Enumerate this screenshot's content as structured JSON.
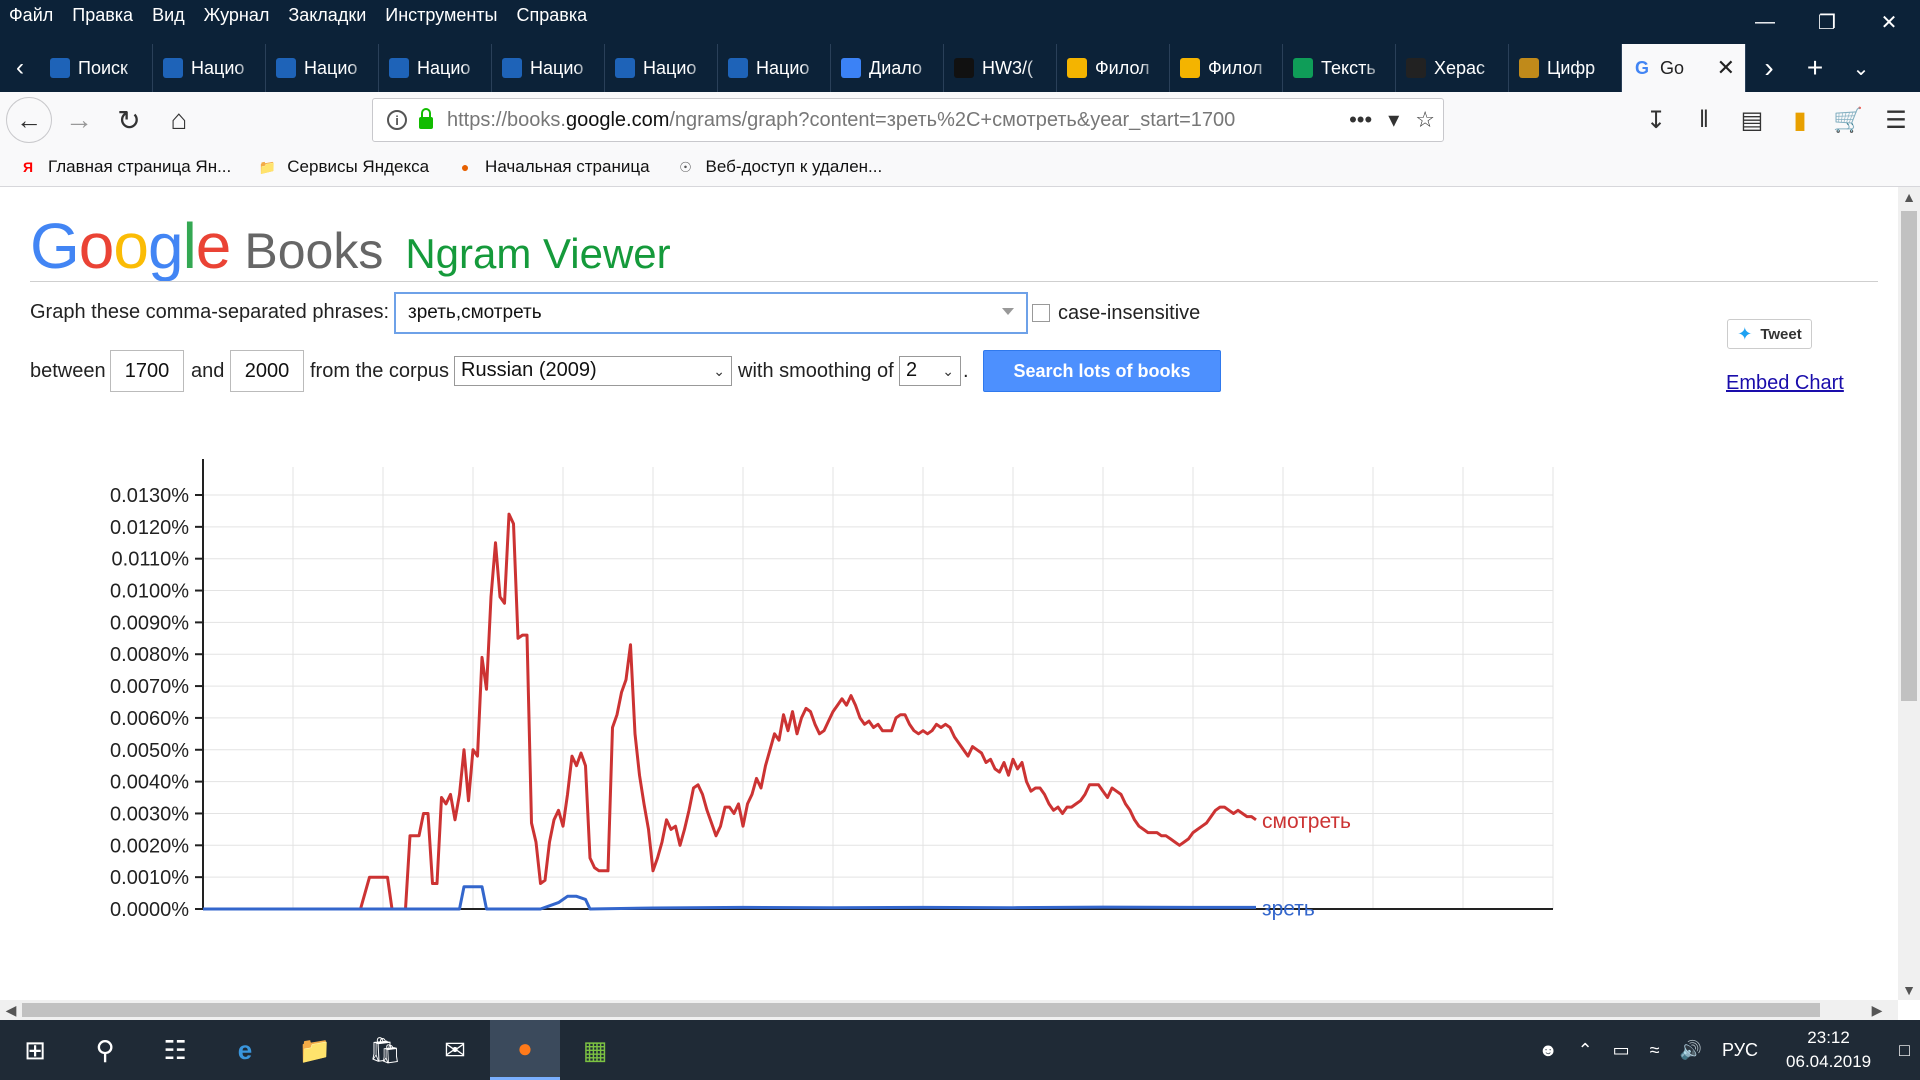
{
  "menu": [
    "Файл",
    "Правка",
    "Вид",
    "Журнал",
    "Закладки",
    "Инструменты",
    "Справка"
  ],
  "tabs": [
    {
      "label": "Поиск",
      "icon": "nkrya-icon",
      "color": "#1e63b8"
    },
    {
      "label": "Нацио",
      "icon": "nkrya-icon",
      "color": "#1e63b8"
    },
    {
      "label": "Нацио",
      "icon": "nkrya-icon",
      "color": "#1e63b8"
    },
    {
      "label": "Нацио",
      "icon": "nkrya-icon",
      "color": "#1e63b8"
    },
    {
      "label": "Нацио",
      "icon": "nkrya-icon",
      "color": "#1e63b8"
    },
    {
      "label": "Нацио",
      "icon": "nkrya-icon",
      "color": "#1e63b8"
    },
    {
      "label": "Нацио",
      "icon": "nkrya-icon",
      "color": "#1e63b8"
    },
    {
      "label": "Диало",
      "icon": "chat-icon",
      "color": "#3b82f6"
    },
    {
      "label": "HW3/(",
      "icon": "github-icon",
      "color": "#111111"
    },
    {
      "label": "Филол",
      "icon": "slides-icon",
      "color": "#f4b400"
    },
    {
      "label": "Филол",
      "icon": "slides-icon",
      "color": "#f4b400"
    },
    {
      "label": "Тексть",
      "icon": "sheets-icon",
      "color": "#0f9d58"
    },
    {
      "label": "Херас",
      "icon": "site-icon",
      "color": "#222222"
    },
    {
      "label": "Цифр",
      "icon": "site-icon",
      "color": "#c08a1a"
    }
  ],
  "active_tab": {
    "label": "Go",
    "icon": "google-icon"
  },
  "url": {
    "prefix": "https://books.",
    "domain": "google.com",
    "rest": "/ngrams/graph?content=зреть%2C+смотреть&year_start=1700"
  },
  "bookmarks": [
    {
      "label": "Главная страница Ян...",
      "icon": "yandex-icon"
    },
    {
      "label": "Сервисы Яндекса",
      "icon": "folder-icon"
    },
    {
      "label": "Начальная страница",
      "icon": "firefox-icon"
    },
    {
      "label": "Веб-доступ к удален...",
      "icon": "globe-icon"
    }
  ],
  "form": {
    "graph_label": "Graph these comma-separated phrases:",
    "phrases": "зреть,смотреть",
    "case_label": "case-insensitive",
    "between": "between",
    "year_start": "1700",
    "and": "and",
    "year_end": "2000",
    "corpus_label": "from the corpus",
    "corpus": "Russian (2009)",
    "smoothing_label": "with smoothing of",
    "smoothing": "2",
    "period": ".",
    "search_button": "Search lots of books",
    "tweet": "Tweet",
    "embed": "Embed Chart"
  },
  "logo": {
    "google": "Google",
    "books": "Books",
    "ngram": "Ngram Viewer"
  },
  "chart_data": {
    "type": "line",
    "title": "",
    "xlabel": "",
    "ylabel": "",
    "y_unit": "%",
    "xlim": [
      1700,
      2000
    ],
    "ylim": [
      0,
      0.013
    ],
    "y_ticks": [
      0,
      0.001,
      0.002,
      0.003,
      0.004,
      0.005,
      0.006,
      0.007,
      0.008,
      0.009,
      0.01,
      0.011,
      0.012,
      0.013
    ],
    "grid": true,
    "series": [
      {
        "name": "смотреть",
        "color": "#cc3333",
        "points": [
          [
            1700,
            0
          ],
          [
            1735,
            0
          ],
          [
            1737,
            0.001
          ],
          [
            1741,
            0.001
          ],
          [
            1742,
            0
          ],
          [
            1745,
            0
          ],
          [
            1746,
            0.0023
          ],
          [
            1748,
            0.0023
          ],
          [
            1749,
            0.003
          ],
          [
            1750,
            0.003
          ],
          [
            1751,
            0.0008
          ],
          [
            1752,
            0.0008
          ],
          [
            1753,
            0.0035
          ],
          [
            1754,
            0.0033
          ],
          [
            1755,
            0.0036
          ],
          [
            1756,
            0.0028
          ],
          [
            1757,
            0.0036
          ],
          [
            1758,
            0.005
          ],
          [
            1759,
            0.0034
          ],
          [
            1760,
            0.005
          ],
          [
            1761,
            0.0048
          ],
          [
            1762,
            0.0079
          ],
          [
            1763,
            0.0069
          ],
          [
            1764,
            0.0098
          ],
          [
            1765,
            0.0115
          ],
          [
            1766,
            0.0098
          ],
          [
            1767,
            0.0096
          ],
          [
            1768,
            0.0124
          ],
          [
            1769,
            0.0121
          ],
          [
            1770,
            0.0085
          ],
          [
            1771,
            0.0086
          ],
          [
            1772,
            0.0086
          ],
          [
            1773,
            0.0027
          ],
          [
            1774,
            0.0021
          ],
          [
            1775,
            0.0008
          ],
          [
            1776,
            0.0009
          ],
          [
            1777,
            0.0021
          ],
          [
            1778,
            0.0028
          ],
          [
            1779,
            0.0031
          ],
          [
            1780,
            0.0026
          ],
          [
            1781,
            0.0036
          ],
          [
            1782,
            0.0048
          ],
          [
            1783,
            0.0045
          ],
          [
            1784,
            0.0049
          ],
          [
            1785,
            0.0045
          ],
          [
            1786,
            0.0016
          ],
          [
            1787,
            0.0013
          ],
          [
            1788,
            0.0012
          ],
          [
            1789,
            0.0012
          ],
          [
            1790,
            0.0012
          ],
          [
            1791,
            0.0057
          ],
          [
            1792,
            0.0061
          ],
          [
            1793,
            0.0068
          ],
          [
            1794,
            0.0072
          ],
          [
            1795,
            0.0083
          ],
          [
            1796,
            0.0055
          ],
          [
            1797,
            0.0042
          ],
          [
            1798,
            0.0033
          ],
          [
            1799,
            0.0025
          ],
          [
            1800,
            0.0012
          ],
          [
            1801,
            0.0016
          ],
          [
            1802,
            0.0021
          ],
          [
            1803,
            0.0028
          ],
          [
            1804,
            0.0025
          ],
          [
            1805,
            0.0026
          ],
          [
            1806,
            0.002
          ],
          [
            1807,
            0.0025
          ],
          [
            1808,
            0.0031
          ],
          [
            1809,
            0.0038
          ],
          [
            1810,
            0.0039
          ],
          [
            1811,
            0.0036
          ],
          [
            1812,
            0.0031
          ],
          [
            1813,
            0.0027
          ],
          [
            1814,
            0.0023
          ],
          [
            1815,
            0.0026
          ],
          [
            1816,
            0.0032
          ],
          [
            1817,
            0.0032
          ],
          [
            1818,
            0.003
          ],
          [
            1819,
            0.0033
          ],
          [
            1820,
            0.0026
          ],
          [
            1821,
            0.0033
          ],
          [
            1822,
            0.0036
          ],
          [
            1823,
            0.0041
          ],
          [
            1824,
            0.0038
          ],
          [
            1825,
            0.0045
          ],
          [
            1826,
            0.005
          ],
          [
            1827,
            0.0055
          ],
          [
            1828,
            0.0053
          ],
          [
            1829,
            0.0061
          ],
          [
            1830,
            0.0056
          ],
          [
            1831,
            0.0062
          ],
          [
            1832,
            0.0055
          ],
          [
            1833,
            0.006
          ],
          [
            1834,
            0.0063
          ],
          [
            1835,
            0.0062
          ],
          [
            1836,
            0.0058
          ],
          [
            1837,
            0.0055
          ],
          [
            1838,
            0.0056
          ],
          [
            1839,
            0.0059
          ],
          [
            1840,
            0.0062
          ],
          [
            1841,
            0.0064
          ],
          [
            1842,
            0.0066
          ],
          [
            1843,
            0.0064
          ],
          [
            1844,
            0.0067
          ],
          [
            1845,
            0.0064
          ],
          [
            1846,
            0.006
          ],
          [
            1847,
            0.0058
          ],
          [
            1848,
            0.0059
          ],
          [
            1849,
            0.0057
          ],
          [
            1850,
            0.0058
          ],
          [
            1851,
            0.0056
          ],
          [
            1852,
            0.0056
          ],
          [
            1853,
            0.0056
          ],
          [
            1854,
            0.006
          ],
          [
            1855,
            0.0061
          ],
          [
            1856,
            0.0061
          ],
          [
            1857,
            0.0058
          ],
          [
            1858,
            0.0056
          ],
          [
            1859,
            0.0055
          ],
          [
            1860,
            0.0056
          ],
          [
            1861,
            0.0055
          ],
          [
            1862,
            0.0056
          ],
          [
            1863,
            0.0058
          ],
          [
            1864,
            0.0057
          ],
          [
            1865,
            0.0058
          ],
          [
            1866,
            0.0057
          ],
          [
            1867,
            0.0054
          ],
          [
            1868,
            0.0052
          ],
          [
            1869,
            0.005
          ],
          [
            1870,
            0.0048
          ],
          [
            1871,
            0.0051
          ],
          [
            1872,
            0.005
          ],
          [
            1873,
            0.0049
          ],
          [
            1874,
            0.0046
          ],
          [
            1875,
            0.0047
          ],
          [
            1876,
            0.0044
          ],
          [
            1877,
            0.0043
          ],
          [
            1878,
            0.0046
          ],
          [
            1879,
            0.0042
          ],
          [
            1880,
            0.0047
          ],
          [
            1881,
            0.0044
          ],
          [
            1882,
            0.0046
          ],
          [
            1883,
            0.004
          ],
          [
            1884,
            0.0037
          ],
          [
            1885,
            0.0038
          ],
          [
            1886,
            0.0038
          ],
          [
            1887,
            0.0036
          ],
          [
            1888,
            0.0033
          ],
          [
            1889,
            0.0031
          ],
          [
            1890,
            0.0032
          ],
          [
            1891,
            0.003
          ],
          [
            1892,
            0.0032
          ],
          [
            1893,
            0.0032
          ],
          [
            1894,
            0.0033
          ],
          [
            1895,
            0.0034
          ],
          [
            1896,
            0.0036
          ],
          [
            1897,
            0.0039
          ],
          [
            1898,
            0.0039
          ],
          [
            1899,
            0.0039
          ],
          [
            1900,
            0.0037
          ],
          [
            1901,
            0.0035
          ],
          [
            1902,
            0.0038
          ],
          [
            1903,
            0.0037
          ],
          [
            1904,
            0.0036
          ],
          [
            1905,
            0.0033
          ],
          [
            1906,
            0.0031
          ],
          [
            1907,
            0.0028
          ],
          [
            1908,
            0.0026
          ],
          [
            1909,
            0.0025
          ],
          [
            1910,
            0.0024
          ],
          [
            1911,
            0.0024
          ],
          [
            1912,
            0.0024
          ],
          [
            1913,
            0.0023
          ],
          [
            1914,
            0.0023
          ],
          [
            1915,
            0.0022
          ],
          [
            1916,
            0.0021
          ],
          [
            1917,
            0.002
          ],
          [
            1918,
            0.0021
          ],
          [
            1919,
            0.0022
          ],
          [
            1920,
            0.0024
          ],
          [
            1921,
            0.0025
          ],
          [
            1922,
            0.0026
          ],
          [
            1923,
            0.0027
          ],
          [
            1924,
            0.0029
          ],
          [
            1925,
            0.0031
          ],
          [
            1926,
            0.0032
          ],
          [
            1927,
            0.0032
          ],
          [
            1928,
            0.0031
          ],
          [
            1929,
            0.003
          ],
          [
            1930,
            0.0031
          ],
          [
            1931,
            0.003
          ],
          [
            1932,
            0.0029
          ],
          [
            1933,
            0.0029
          ],
          [
            1934,
            0.0028
          ]
        ]
      },
      {
        "name": "зреть",
        "color": "#3366cc",
        "points": [
          [
            1700,
            0
          ],
          [
            1757,
            0
          ],
          [
            1758,
            0.0007
          ],
          [
            1760,
            0.0007
          ],
          [
            1762,
            0.0007
          ],
          [
            1763,
            0
          ],
          [
            1775,
            0
          ],
          [
            1777,
            0.0001
          ],
          [
            1779,
            0.0002
          ],
          [
            1781,
            0.0004
          ],
          [
            1783,
            0.0004
          ],
          [
            1785,
            0.0003
          ],
          [
            1786,
            0
          ],
          [
            1800,
            3e-05
          ],
          [
            1820,
            5e-05
          ],
          [
            1840,
            4e-05
          ],
          [
            1860,
            5e-05
          ],
          [
            1880,
            4e-05
          ],
          [
            1900,
            6e-05
          ],
          [
            1920,
            5e-05
          ],
          [
            1934,
            5e-05
          ]
        ]
      }
    ]
  }
}
